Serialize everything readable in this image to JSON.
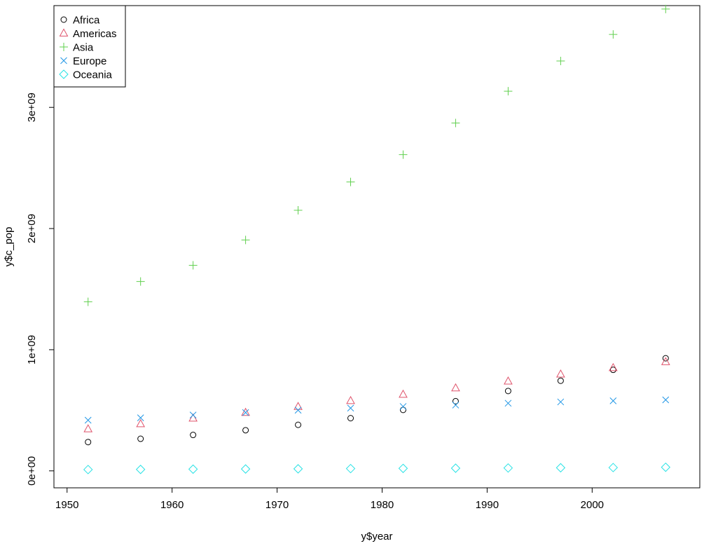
{
  "chart_data": {
    "type": "scatter",
    "xlabel": "y$year",
    "ylabel": "y$c_pop",
    "xlim": [
      1948.75,
      2010.25
    ],
    "ylim": [
      -140000000,
      3840000000
    ],
    "x_ticks": [
      1950,
      1960,
      1970,
      1980,
      1990,
      2000
    ],
    "x_tick_labels": [
      "1950",
      "1960",
      "1970",
      "1980",
      "1990",
      "2000"
    ],
    "y_ticks": [
      0,
      1000000000,
      2000000000,
      3000000000
    ],
    "y_tick_labels": [
      "0e+00",
      "1e+09",
      "2e+09",
      "3e+09"
    ],
    "grid": false,
    "legend_position": "top-left",
    "x": [
      1952,
      1957,
      1962,
      1967,
      1972,
      1977,
      1982,
      1987,
      1992,
      1997,
      2002,
      2007
    ],
    "series": [
      {
        "name": "Africa",
        "marker": "circle",
        "color": "#000000",
        "values": [
          237600000,
          264800000,
          296500000,
          335300000,
          379900000,
          434900000,
          503000000,
          574800000,
          659100000,
          743800000,
          833700000,
          929500000
        ]
      },
      {
        "name": "Americas",
        "marker": "triangle",
        "color": "#DF536B",
        "values": [
          345200000,
          386900000,
          433300000,
          480700000,
          529400000,
          578100000,
          630300000,
          682800000,
          739300000,
          796900000,
          849800000,
          898900000
        ]
      },
      {
        "name": "Asia",
        "marker": "plus",
        "color": "#61D04F",
        "values": [
          1395400000,
          1562800000,
          1696400000,
          1905700000,
          2150900000,
          2384500000,
          2610100000,
          2871200000,
          3133300000,
          3383300000,
          3601800000,
          3811900000
        ]
      },
      {
        "name": "Europe",
        "marker": "cross",
        "color": "#2297E6",
        "values": [
          418100000,
          437900000,
          460800000,
          481200000,
          500600000,
          517800000,
          531300000,
          543100000,
          558100000,
          568900000,
          578200000,
          586100000
        ]
      },
      {
        "name": "Oceania",
        "marker": "diamond",
        "color": "#28E2E5",
        "values": [
          10700000,
          11900000,
          14000000,
          15500000,
          17000000,
          18800000,
          20300000,
          22000000,
          23800000,
          25500000,
          27300000,
          29700000
        ]
      }
    ]
  }
}
